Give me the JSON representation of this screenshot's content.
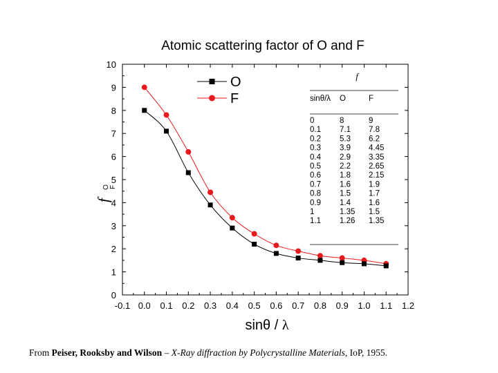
{
  "chart_data": {
    "type": "line",
    "title": "Atomic scattering factor of O and F",
    "xlabel_main": "sinθ",
    "xlabel_sep": " / ",
    "xlabel_lambda": "λ",
    "ylabel_main": "f",
    "ylabel_sub_O": "O",
    "ylabel_sub_F": "F",
    "xlim": [
      -0.1,
      1.2
    ],
    "ylim": [
      0,
      10
    ],
    "x_ticks": [
      "-0.1",
      "0.0",
      "0.1",
      "0.2",
      "0.3",
      "0.4",
      "0.5",
      "0.6",
      "0.7",
      "0.8",
      "0.9",
      "1.0",
      "1.1",
      "1.2"
    ],
    "y_ticks": [
      "0",
      "1",
      "2",
      "3",
      "4",
      "5",
      "6",
      "7",
      "8",
      "9",
      "10"
    ],
    "legend_position": "top-center",
    "x": [
      0,
      0.1,
      0.2,
      0.3,
      0.4,
      0.5,
      0.6,
      0.7,
      0.8,
      0.9,
      1.0,
      1.1
    ],
    "series": [
      {
        "name": "O",
        "values": [
          8,
          7.1,
          5.3,
          3.9,
          2.9,
          2.2,
          1.8,
          1.6,
          1.5,
          1.4,
          1.35,
          1.26
        ],
        "color": "#000000",
        "marker": "square"
      },
      {
        "name": "F",
        "values": [
          9,
          7.8,
          6.2,
          4.45,
          3.35,
          2.65,
          2.15,
          1.9,
          1.7,
          1.6,
          1.5,
          1.35
        ],
        "color": "#e8191c",
        "marker": "circle"
      }
    ],
    "table": {
      "header_group": "f",
      "columns": [
        "sinθ/λ",
        "O",
        "F"
      ],
      "rows": [
        [
          "0",
          "8",
          "9"
        ],
        [
          "0.1",
          "7.1",
          "7.8"
        ],
        [
          "0.2",
          "5.3",
          "6.2"
        ],
        [
          "0.3",
          "3.9",
          "4.45"
        ],
        [
          "0.4",
          "2.9",
          "3.35"
        ],
        [
          "0.5",
          "2.2",
          "2.65"
        ],
        [
          "0.6",
          "1.8",
          "2.15"
        ],
        [
          "0.7",
          "1.6",
          "1.9"
        ],
        [
          "0.8",
          "1.5",
          "1.7"
        ],
        [
          "0.9",
          "1.4",
          "1.6"
        ],
        [
          "1",
          "1.35",
          "1.5"
        ],
        [
          "1.1",
          "1.26",
          "1.35"
        ]
      ]
    }
  },
  "credit": {
    "prefix": "From ",
    "authors": "Peiser, Rooksby and Wilson",
    "dash": " – ",
    "book": "X-Ray diffraction by Polycrystalline Materials",
    "suffix": ", IoP, 1955."
  }
}
